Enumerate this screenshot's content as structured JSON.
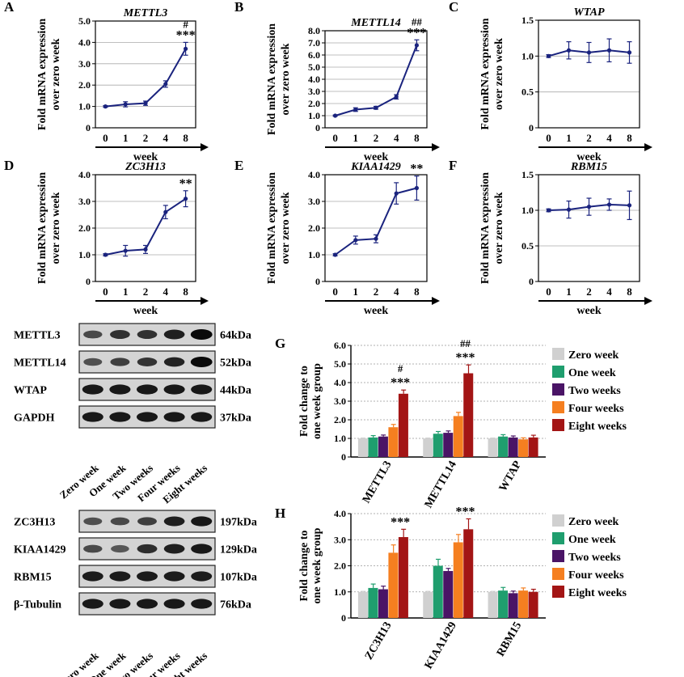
{
  "chart_data": [
    {
      "panel": "A",
      "type": "line",
      "title": "METTL3",
      "ylabel": [
        "Fold mRNA expression",
        "over zero week"
      ],
      "xlabel": "week",
      "x": [
        "0",
        "1",
        "2",
        "4",
        "8"
      ],
      "values": [
        1.0,
        1.1,
        1.15,
        2.05,
        3.7
      ],
      "errors": [
        0.04,
        0.12,
        0.1,
        0.15,
        0.3
      ],
      "ylim": [
        0,
        5
      ],
      "yticks": [
        "0",
        "1.0",
        "2.0",
        "3.0",
        "4.0",
        "5.0"
      ],
      "annotations": [
        {
          "x": "8",
          "text": "***"
        },
        {
          "x": "8",
          "text": "#"
        }
      ],
      "line_color": "#1a237e"
    },
    {
      "panel": "B",
      "type": "line",
      "title": "METTL14",
      "ylabel": [
        "Fold mRNA expression",
        "over zero week"
      ],
      "xlabel": "week",
      "x": [
        "0",
        "1",
        "2",
        "4",
        "8"
      ],
      "values": [
        1.0,
        1.5,
        1.65,
        2.55,
        6.8
      ],
      "errors": [
        0.05,
        0.15,
        0.12,
        0.18,
        0.45
      ],
      "ylim": [
        0,
        8
      ],
      "yticks": [
        "0",
        "1.0",
        "2.0",
        "3.0",
        "4.0",
        "5.0",
        "6.0",
        "7.0",
        "8.0"
      ],
      "annotations": [
        {
          "x": "8",
          "text": "***"
        },
        {
          "x": "8",
          "text": "##"
        }
      ],
      "line_color": "#1a237e"
    },
    {
      "panel": "C",
      "type": "line",
      "title": "WTAP",
      "ylabel": [
        "Fold mRNA expression",
        "over zero week"
      ],
      "xlabel": "week",
      "x": [
        "0",
        "1",
        "2",
        "4",
        "8"
      ],
      "values": [
        1.0,
        1.08,
        1.05,
        1.08,
        1.05
      ],
      "errors": [
        0.02,
        0.12,
        0.14,
        0.16,
        0.15
      ],
      "ylim": [
        0,
        1.5
      ],
      "yticks": [
        "0",
        "0.5",
        "1.0",
        "1.5"
      ],
      "annotations": [],
      "line_color": "#1a237e"
    },
    {
      "panel": "D",
      "type": "line",
      "title": "ZC3H13",
      "ylabel": [
        "Fold mRNA expression",
        "over zero week"
      ],
      "xlabel": "week",
      "x": [
        "0",
        "1",
        "2",
        "4",
        "8"
      ],
      "values": [
        1.0,
        1.15,
        1.2,
        2.6,
        3.1
      ],
      "errors": [
        0.04,
        0.2,
        0.15,
        0.25,
        0.3
      ],
      "ylim": [
        0,
        4
      ],
      "yticks": [
        "0",
        "1.0",
        "2.0",
        "3.0",
        "4.0"
      ],
      "annotations": [
        {
          "x": "8",
          "text": "**"
        }
      ],
      "line_color": "#1a237e"
    },
    {
      "panel": "E",
      "type": "line",
      "title": "KIAA1429",
      "ylabel": [
        "Fold mRNA expression",
        "over zero week"
      ],
      "xlabel": "week",
      "x": [
        "0",
        "1",
        "2",
        "4",
        "8"
      ],
      "values": [
        1.0,
        1.55,
        1.6,
        3.3,
        3.5
      ],
      "errors": [
        0.04,
        0.15,
        0.15,
        0.4,
        0.45
      ],
      "ylim": [
        0,
        4
      ],
      "yticks": [
        "0",
        "1.0",
        "2.0",
        "3.0",
        "4.0"
      ],
      "annotations": [
        {
          "x": "8",
          "text": "**"
        }
      ],
      "line_color": "#1a237e"
    },
    {
      "panel": "F",
      "type": "line",
      "title": "RBM15",
      "ylabel": [
        "Fold mRNA expression",
        "over zero week"
      ],
      "xlabel": "week",
      "x": [
        "0",
        "1",
        "2",
        "4",
        "8"
      ],
      "values": [
        1.0,
        1.01,
        1.05,
        1.08,
        1.07
      ],
      "errors": [
        0.02,
        0.12,
        0.12,
        0.08,
        0.2
      ],
      "ylim": [
        0,
        1.5
      ],
      "yticks": [
        "0",
        "0.5",
        "1.0",
        "1.5"
      ],
      "annotations": [],
      "line_color": "#1a237e"
    },
    {
      "panel": "G",
      "type": "bar",
      "title": "",
      "ylabel": [
        "Fold change to",
        "one week group"
      ],
      "categories": [
        "METTL3",
        "METTL14",
        "WTAP"
      ],
      "series": [
        {
          "name": "Zero week",
          "color": "#d0d0d0",
          "values": [
            1.0,
            1.0,
            1.0
          ],
          "errors": [
            0.02,
            0.02,
            0.02
          ]
        },
        {
          "name": "One week",
          "color": "#1f9e6e",
          "values": [
            1.05,
            1.25,
            1.1
          ],
          "errors": [
            0.1,
            0.12,
            0.1
          ]
        },
        {
          "name": "Two weeks",
          "color": "#4a1466",
          "values": [
            1.1,
            1.3,
            1.05
          ],
          "errors": [
            0.08,
            0.1,
            0.08
          ]
        },
        {
          "name": "Four weeks",
          "color": "#f57f20",
          "values": [
            1.6,
            2.2,
            0.95
          ],
          "errors": [
            0.15,
            0.2,
            0.08
          ]
        },
        {
          "name": "Eight weeks",
          "color": "#a31515",
          "values": [
            3.4,
            4.5,
            1.05
          ],
          "errors": [
            0.2,
            0.45,
            0.12
          ]
        }
      ],
      "ylim": [
        0,
        6
      ],
      "yticks": [
        "0",
        "1.0",
        "2.0",
        "3.0",
        "4.0",
        "5.0",
        "6.0"
      ],
      "annotations": [
        {
          "category": "METTL3",
          "text": "***"
        },
        {
          "category": "METTL3",
          "text": "#"
        },
        {
          "category": "METTL14",
          "text": "***"
        },
        {
          "category": "METTL14",
          "text": "##"
        }
      ]
    },
    {
      "panel": "H",
      "type": "bar",
      "title": "",
      "ylabel": [
        "Fold change to",
        "one week group"
      ],
      "categories": [
        "ZC3H13",
        "KIAA1429",
        "RBM15"
      ],
      "series": [
        {
          "name": "Zero week",
          "color": "#d0d0d0",
          "values": [
            1.0,
            1.0,
            1.0
          ],
          "errors": [
            0.02,
            0.02,
            0.02
          ]
        },
        {
          "name": "One week",
          "color": "#1f9e6e",
          "values": [
            1.15,
            2.0,
            1.05
          ],
          "errors": [
            0.15,
            0.25,
            0.12
          ]
        },
        {
          "name": "Two weeks",
          "color": "#4a1466",
          "values": [
            1.1,
            1.8,
            0.95
          ],
          "errors": [
            0.12,
            0.1,
            0.08
          ]
        },
        {
          "name": "Four weeks",
          "color": "#f57f20",
          "values": [
            2.5,
            2.9,
            1.05
          ],
          "errors": [
            0.3,
            0.3,
            0.1
          ]
        },
        {
          "name": "Eight weeks",
          "color": "#a31515",
          "values": [
            3.1,
            3.4,
            1.0
          ],
          "errors": [
            0.3,
            0.4,
            0.1
          ]
        }
      ],
      "ylim": [
        0,
        4
      ],
      "yticks": [
        "0",
        "1.0",
        "2.0",
        "3.0",
        "4.0"
      ],
      "annotations": [
        {
          "category": "ZC3H13",
          "text": "***"
        },
        {
          "category": "KIAA1429",
          "text": "***"
        }
      ]
    }
  ],
  "blots": [
    {
      "rows": [
        {
          "label": "METTL3",
          "kda": "64kDa",
          "intensity": [
            0.55,
            0.72,
            0.72,
            0.85,
            1.0
          ]
        },
        {
          "label": "METTL14",
          "kda": "52kDa",
          "intensity": [
            0.5,
            0.62,
            0.7,
            0.82,
            1.0
          ]
        },
        {
          "label": "WTAP",
          "kda": "44kDa",
          "intensity": [
            0.9,
            0.9,
            0.9,
            0.9,
            0.9
          ]
        },
        {
          "label": "GAPDH",
          "kda": "37kDa",
          "intensity": [
            0.9,
            0.9,
            0.9,
            0.9,
            0.9
          ]
        }
      ],
      "samples": [
        "Zero week",
        "One week",
        "Two weeks",
        "Four weeks",
        "Eight weeks"
      ]
    },
    {
      "rows": [
        {
          "label": "ZC3H13",
          "kda": "197kDa",
          "intensity": [
            0.5,
            0.55,
            0.62,
            0.85,
            0.9
          ]
        },
        {
          "label": "KIAA1429",
          "kda": "129kDa",
          "intensity": [
            0.55,
            0.45,
            0.75,
            0.85,
            0.9
          ]
        },
        {
          "label": "RBM15",
          "kda": "107kDa",
          "intensity": [
            0.88,
            0.88,
            0.88,
            0.88,
            0.88
          ]
        },
        {
          "label": "β-Tubulin",
          "kda": "76kDa",
          "intensity": [
            0.9,
            0.9,
            0.9,
            0.9,
            0.9
          ]
        }
      ],
      "samples": [
        "Zero week",
        "One week",
        "Two weeks",
        "Four weeks",
        "Eight weeks"
      ]
    }
  ]
}
